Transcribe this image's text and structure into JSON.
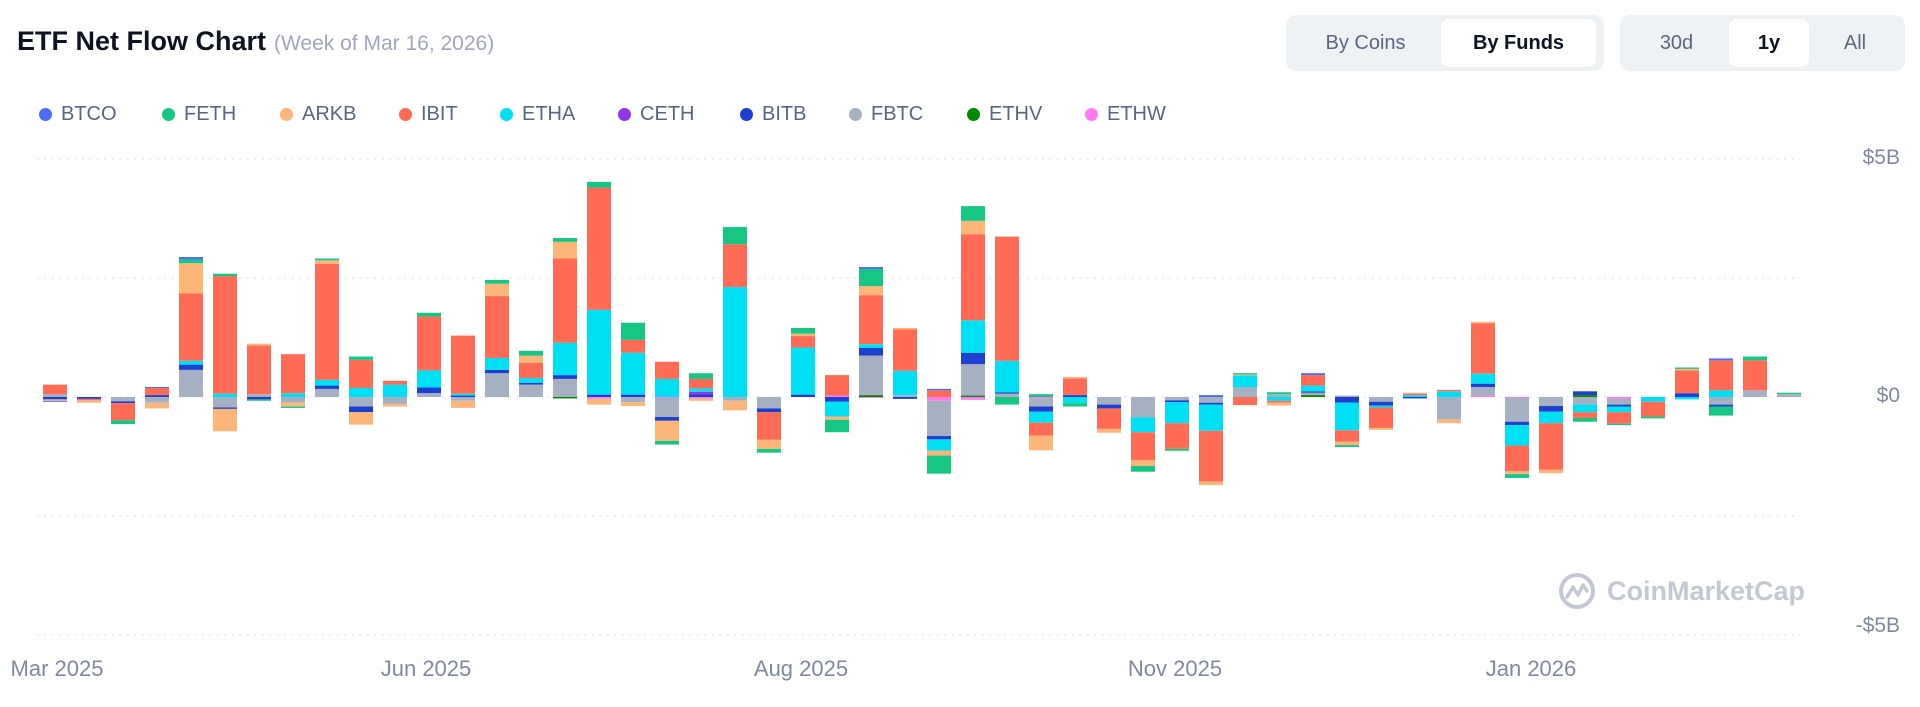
{
  "header": {
    "title": "ETF Net Flow Chart",
    "subtitle": "(Week of Mar 16, 2026)"
  },
  "view_toggle": {
    "options": [
      "By Coins",
      "By Funds"
    ],
    "selected": "By Funds"
  },
  "range_toggle": {
    "options": [
      "30d",
      "1y",
      "All"
    ],
    "selected": "1y"
  },
  "watermark": "CoinMarketCap",
  "chart_data": {
    "type": "bar",
    "stacked": true,
    "title": "",
    "xlabel": "",
    "ylabel": "",
    "ylim": [
      -5,
      5
    ],
    "y_unit": "billion USD",
    "y_tick_labels": [
      "$5B",
      "$0",
      "-$5B"
    ],
    "x_tick_labels": [
      "Mar 2025",
      "Jun 2025",
      "Aug 2025",
      "Nov 2025",
      "Jan 2026"
    ],
    "grid": true,
    "legend": "top-left",
    "series": [
      {
        "name": "BTCO",
        "color": "#4a6cf7",
        "values": [
          -0.02,
          0,
          0,
          0.02,
          0.05,
          0,
          0,
          0,
          0,
          0,
          0,
          0,
          0,
          0,
          0,
          0,
          0,
          0,
          0,
          0,
          0,
          0,
          0,
          0,
          0.04,
          0,
          0.03,
          0,
          0,
          0,
          0,
          0,
          0,
          0,
          0.04,
          0,
          0,
          0.04,
          0,
          0,
          0,
          0,
          0,
          0,
          0,
          0,
          0,
          0,
          0,
          0.04,
          0,
          0
        ]
      },
      {
        "name": "FETH",
        "color": "#16c784",
        "values": [
          0,
          0,
          -0.08,
          0,
          0.08,
          0.05,
          -0.03,
          -0.03,
          0.04,
          0.07,
          0,
          0.08,
          0,
          0.08,
          0.1,
          0.08,
          0.12,
          0.36,
          -0.08,
          0.12,
          0.36,
          -0.08,
          0.12,
          -0.26,
          0.36,
          0,
          -0.38,
          0.31,
          -0.16,
          0.06,
          -0.07,
          0,
          -0.12,
          -0.04,
          0,
          0.03,
          0.04,
          0,
          -0.04,
          0,
          0,
          0,
          0,
          -0.08,
          0,
          -0.08,
          -0.03,
          -0.04,
          0.03,
          -0.19,
          0.08,
          0.03
        ]
      },
      {
        "name": "ARKB",
        "color": "#fdb677",
        "values": [
          -0.03,
          -0.05,
          0,
          -0.12,
          0.63,
          -0.47,
          0.04,
          -0.08,
          0.07,
          -0.26,
          -0.05,
          0,
          -0.15,
          0.26,
          0.15,
          0.35,
          -0.12,
          -0.08,
          -0.42,
          -0.05,
          -0.2,
          -0.19,
          0.05,
          -0.07,
          0.19,
          0.03,
          -0.1,
          0.28,
          0,
          -0.31,
          0.03,
          -0.08,
          -0.12,
          0,
          -0.07,
          0.02,
          -0.06,
          0,
          -0.07,
          -0.04,
          0.02,
          -0.08,
          0.03,
          -0.06,
          -0.07,
          0,
          0,
          0,
          0.03,
          0,
          0,
          0
        ]
      },
      {
        "name": "IBIT",
        "color": "#ff6b55",
        "values": [
          0.2,
          -0.03,
          -0.36,
          0.15,
          1.42,
          2.47,
          1.02,
          0.82,
          2.44,
          0.59,
          0.08,
          1.13,
          1.22,
          1.3,
          0.32,
          1.77,
          2.57,
          0.27,
          0.36,
          0.2,
          0.9,
          -0.58,
          0.24,
          0.43,
          1.03,
          0.87,
          0.14,
          1.81,
          2.61,
          -0.27,
          0.35,
          -0.43,
          -0.59,
          -0.54,
          -1.07,
          -0.17,
          -0.04,
          0.22,
          -0.24,
          -0.43,
          0.03,
          0.03,
          1.06,
          -0.54,
          -0.98,
          -0.12,
          -0.24,
          -0.31,
          0.48,
          0.63,
          0.63,
          0
        ]
      },
      {
        "name": "ETHA",
        "color": "#00e0f5",
        "values": [
          0,
          0,
          0,
          0,
          0.08,
          0.07,
          0,
          0.08,
          0.12,
          0.19,
          0.26,
          0.36,
          0.04,
          0.25,
          0.1,
          0.68,
          1.78,
          0.88,
          0.38,
          0.07,
          2.31,
          0,
          0.99,
          -0.31,
          0.08,
          0.51,
          -0.24,
          0.68,
          0.66,
          -0.23,
          -0.13,
          0,
          -0.31,
          -0.44,
          -0.55,
          0.24,
          -0.08,
          0.12,
          -0.58,
          -0.04,
          0.04,
          0.12,
          0.21,
          -0.43,
          -0.24,
          -0.16,
          -0.12,
          -0.1,
          -0.05,
          0.14,
          0,
          0
        ]
      },
      {
        "name": "CETH",
        "color": "#9333ea",
        "values": [
          0,
          0,
          0,
          0,
          0,
          0,
          0,
          0,
          0,
          0,
          0,
          0,
          0,
          0,
          0,
          0,
          0,
          0,
          0,
          0.05,
          0,
          0,
          0,
          0,
          0,
          0,
          0,
          0,
          0,
          0,
          0,
          0,
          0,
          0,
          0,
          0,
          0,
          0,
          0,
          0,
          0,
          0,
          0,
          0,
          0,
          0,
          0,
          0,
          0,
          0,
          0,
          0
        ]
      },
      {
        "name": "BITB",
        "color": "#1e40d0",
        "values": [
          -0.05,
          -0.04,
          -0.04,
          0.04,
          0.11,
          -0.03,
          -0.05,
          0,
          0.07,
          -0.12,
          0,
          0.12,
          0.03,
          0.07,
          0.04,
          0.08,
          0.05,
          0.05,
          -0.08,
          0.06,
          0,
          -0.08,
          0.05,
          -0.1,
          0.16,
          -0.04,
          -0.07,
          0.24,
          0.03,
          -0.11,
          0.04,
          -0.08,
          0,
          -0.04,
          -0.04,
          0,
          0,
          0.03,
          -0.12,
          -0.08,
          -0.03,
          0,
          0.07,
          -0.07,
          -0.12,
          0.08,
          -0.04,
          0,
          0.08,
          -0.04,
          0,
          0
        ]
      },
      {
        "name": "FBTC",
        "color": "#a5b0c2",
        "values": [
          0.06,
          0,
          -0.09,
          -0.12,
          0.57,
          -0.22,
          0.06,
          -0.12,
          0.17,
          -0.2,
          -0.15,
          0.08,
          -0.08,
          0.5,
          0.26,
          0.38,
          0,
          -0.11,
          -0.4,
          0,
          -0.08,
          -0.24,
          0,
          0,
          0.83,
          0.04,
          -0.74,
          0.66,
          0.07,
          -0.17,
          0,
          -0.16,
          -0.43,
          -0.07,
          -0.12,
          0.21,
          0.06,
          0.05,
          0.03,
          -0.1,
          0,
          -0.47,
          0.18,
          -0.5,
          -0.19,
          -0.16,
          -0.12,
          0,
          0,
          -0.16,
          0.14,
          0.06
        ]
      },
      {
        "name": "ETHV",
        "color": "#008a00",
        "values": [
          0,
          0,
          0,
          0,
          0,
          0,
          0,
          0,
          0,
          0,
          0,
          0,
          0,
          0,
          0,
          -0.03,
          0,
          0,
          0,
          0,
          0,
          0,
          0,
          0,
          0.04,
          0,
          0,
          0.03,
          0,
          0,
          0,
          0,
          0,
          0,
          0,
          0,
          0,
          0.04,
          0,
          0,
          0,
          0,
          0,
          0,
          0,
          0.04,
          0,
          0,
          0,
          0,
          0,
          0
        ]
      },
      {
        "name": "ETHW",
        "color": "#ff7af0",
        "values": [
          0,
          0,
          0,
          0,
          0,
          0,
          0,
          0,
          0,
          0,
          0,
          0,
          0,
          0,
          0,
          0,
          -0.04,
          0,
          -0.02,
          -0.03,
          0,
          0,
          0,
          0.03,
          -0.02,
          0,
          -0.08,
          -0.06,
          0,
          -0.03,
          0,
          0,
          0,
          0,
          0,
          0,
          0,
          0,
          0,
          0,
          0,
          0,
          0.03,
          -0.02,
          0,
          0,
          -0.04,
          0,
          0,
          0,
          0,
          0
        ]
      }
    ]
  }
}
